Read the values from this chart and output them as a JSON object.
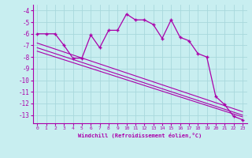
{
  "xlabel": "Windchill (Refroidissement éolien,°C)",
  "bg_color": "#c8eef0",
  "grid_color": "#a8d8dc",
  "line_color": "#aa00aa",
  "xlim": [
    -0.5,
    23.5
  ],
  "ylim": [
    -13.7,
    -3.5
  ],
  "yticks": [
    -13,
    -12,
    -11,
    -10,
    -9,
    -8,
    -7,
    -6,
    -5,
    -4
  ],
  "xticks": [
    0,
    1,
    2,
    3,
    4,
    5,
    6,
    7,
    8,
    9,
    10,
    11,
    12,
    13,
    14,
    15,
    16,
    17,
    18,
    19,
    20,
    21,
    22,
    23
  ],
  "main_line_x": [
    0,
    1,
    2,
    3,
    4,
    5,
    6,
    7,
    8,
    9,
    10,
    11,
    12,
    13,
    14,
    15,
    16,
    17,
    18,
    19,
    20,
    21,
    22,
    23
  ],
  "main_line_y": [
    -6.0,
    -6.0,
    -6.0,
    -7.0,
    -8.1,
    -8.1,
    -6.1,
    -7.2,
    -5.7,
    -5.7,
    -4.3,
    -4.8,
    -4.8,
    -5.2,
    -6.4,
    -4.8,
    -6.3,
    -6.6,
    -7.7,
    -8.0,
    -11.4,
    -12.1,
    -13.1,
    -13.4
  ],
  "line2_x": [
    0,
    23
  ],
  "line2_y": [
    -7.2,
    -13.0
  ],
  "line3_x": [
    0,
    23
  ],
  "line3_y": [
    -7.5,
    -13.15
  ],
  "line4_x": [
    0,
    23
  ],
  "line4_y": [
    -6.8,
    -12.7
  ]
}
